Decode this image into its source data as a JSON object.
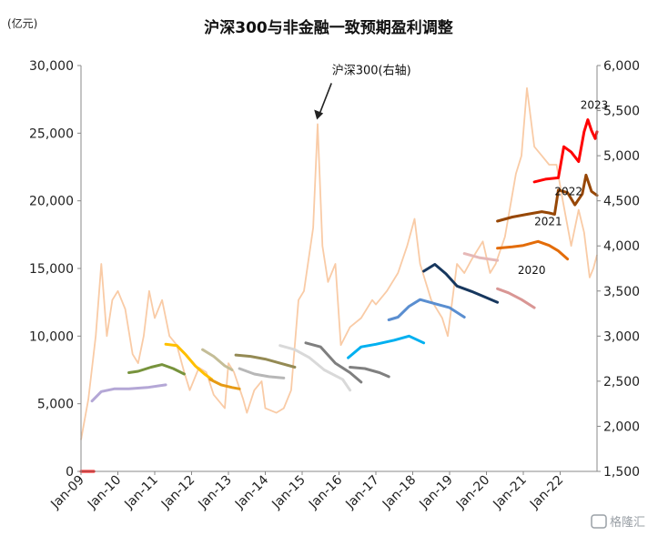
{
  "chart_data": {
    "type": "line",
    "title": "沪深300与非金融一致预期盈利调整",
    "y_unit_label": "(亿元)",
    "ylim_left": [
      0,
      30000
    ],
    "ylim_right": [
      1500,
      6000
    ],
    "y_ticks_left": [
      "0",
      "5,000",
      "10,000",
      "15,000",
      "20,000",
      "25,000",
      "30,000"
    ],
    "y_ticks_right": [
      "1,500",
      "2,000",
      "2,500",
      "3,000",
      "3,500",
      "4,000",
      "4,500",
      "5,000",
      "5,500",
      "6,000"
    ],
    "x_ticks": [
      "Jan-09",
      "Jan-10",
      "Jan-11",
      "Jan-12",
      "Jan-13",
      "Jan-14",
      "Jan-15",
      "Jan-16",
      "Jan-17",
      "Jan-18",
      "Jan-19",
      "Jan-20",
      "Jan-21",
      "Jan-22"
    ],
    "x_range": [
      2009.0,
      2023.0
    ],
    "annotation": {
      "text": "沪深300(右轴)",
      "points_to": {
        "x": 2015.4,
        "y_right": 5400
      }
    },
    "index_series": {
      "axis": "right",
      "color": "#f9cba6",
      "points": [
        [
          2009.0,
          1850
        ],
        [
          2009.2,
          2300
        ],
        [
          2009.4,
          3000
        ],
        [
          2009.55,
          3800
        ],
        [
          2009.7,
          3000
        ],
        [
          2009.85,
          3400
        ],
        [
          2010.0,
          3500
        ],
        [
          2010.2,
          3300
        ],
        [
          2010.4,
          2800
        ],
        [
          2010.55,
          2700
        ],
        [
          2010.7,
          3000
        ],
        [
          2010.85,
          3500
        ],
        [
          2011.0,
          3200
        ],
        [
          2011.2,
          3400
        ],
        [
          2011.4,
          3000
        ],
        [
          2011.6,
          2900
        ],
        [
          2011.8,
          2600
        ],
        [
          2011.95,
          2400
        ],
        [
          2012.2,
          2650
        ],
        [
          2012.4,
          2600
        ],
        [
          2012.6,
          2350
        ],
        [
          2012.9,
          2200
        ],
        [
          2013.0,
          2700
        ],
        [
          2013.15,
          2600
        ],
        [
          2013.4,
          2300
        ],
        [
          2013.5,
          2150
        ],
        [
          2013.7,
          2400
        ],
        [
          2013.9,
          2500
        ],
        [
          2014.0,
          2200
        ],
        [
          2014.3,
          2150
        ],
        [
          2014.5,
          2200
        ],
        [
          2014.7,
          2400
        ],
        [
          2014.9,
          3400
        ],
        [
          2015.05,
          3500
        ],
        [
          2015.3,
          4200
        ],
        [
          2015.42,
          5350
        ],
        [
          2015.55,
          4000
        ],
        [
          2015.7,
          3600
        ],
        [
          2015.9,
          3800
        ],
        [
          2016.05,
          2900
        ],
        [
          2016.3,
          3100
        ],
        [
          2016.6,
          3200
        ],
        [
          2016.9,
          3400
        ],
        [
          2017.0,
          3350
        ],
        [
          2017.3,
          3500
        ],
        [
          2017.6,
          3700
        ],
        [
          2017.85,
          4000
        ],
        [
          2018.05,
          4300
        ],
        [
          2018.2,
          3800
        ],
        [
          2018.5,
          3400
        ],
        [
          2018.8,
          3200
        ],
        [
          2018.95,
          3000
        ],
        [
          2019.2,
          3800
        ],
        [
          2019.4,
          3700
        ],
        [
          2019.6,
          3850
        ],
        [
          2019.9,
          4050
        ],
        [
          2020.1,
          3700
        ],
        [
          2020.25,
          3800
        ],
        [
          2020.5,
          4100
        ],
        [
          2020.8,
          4800
        ],
        [
          2020.95,
          5000
        ],
        [
          2021.1,
          5750
        ],
        [
          2021.3,
          5100
        ],
        [
          2021.5,
          5000
        ],
        [
          2021.7,
          4900
        ],
        [
          2021.9,
          4900
        ],
        [
          2022.05,
          4550
        ],
        [
          2022.3,
          4000
        ],
        [
          2022.5,
          4400
        ],
        [
          2022.65,
          4150
        ],
        [
          2022.8,
          3650
        ],
        [
          2022.9,
          3750
        ],
        [
          2023.0,
          3900
        ]
      ]
    },
    "earnings_series": [
      {
        "color": "#b4a7d6",
        "points": [
          [
            2009.3,
            5200
          ],
          [
            2009.55,
            5900
          ],
          [
            2009.9,
            6100
          ],
          [
            2010.3,
            6100
          ],
          [
            2010.8,
            6200
          ],
          [
            2011.3,
            6400
          ]
        ]
      },
      {
        "color": "#77933c",
        "points": [
          [
            2010.3,
            7300
          ],
          [
            2010.55,
            7400
          ],
          [
            2010.9,
            7700
          ],
          [
            2011.2,
            7900
          ],
          [
            2011.5,
            7600
          ],
          [
            2011.8,
            7200
          ]
        ]
      },
      {
        "color": "#ffc000",
        "points": [
          [
            2011.3,
            9400
          ],
          [
            2011.6,
            9300
          ],
          [
            2011.85,
            8600
          ],
          [
            2012.1,
            7800
          ],
          [
            2012.35,
            7200
          ],
          [
            2012.55,
            6800
          ]
        ]
      },
      {
        "color": "#e69a14",
        "points": [
          [
            2012.5,
            6800
          ],
          [
            2012.8,
            6400
          ],
          [
            2013.1,
            6200
          ],
          [
            2013.3,
            6100
          ]
        ]
      },
      {
        "color": "#c4bd97",
        "points": [
          [
            2012.3,
            9000
          ],
          [
            2012.6,
            8500
          ],
          [
            2012.9,
            7800
          ],
          [
            2013.1,
            7500
          ]
        ]
      },
      {
        "color": "#b7b7b7",
        "points": [
          [
            2013.3,
            7600
          ],
          [
            2013.7,
            7200
          ],
          [
            2014.1,
            7000
          ],
          [
            2014.5,
            6900
          ]
        ]
      },
      {
        "color": "#948a54",
        "points": [
          [
            2013.2,
            8600
          ],
          [
            2013.6,
            8500
          ],
          [
            2014.0,
            8300
          ],
          [
            2014.4,
            8000
          ],
          [
            2014.8,
            7700
          ]
        ]
      },
      {
        "color": "#d9d9d9",
        "points": [
          [
            2014.4,
            9300
          ],
          [
            2014.8,
            9000
          ],
          [
            2015.2,
            8400
          ],
          [
            2015.6,
            7500
          ],
          [
            2016.1,
            6800
          ],
          [
            2016.3,
            6000
          ]
        ]
      },
      {
        "color": "#7f7f7f",
        "points": [
          [
            2015.1,
            9500
          ],
          [
            2015.5,
            9200
          ],
          [
            2015.9,
            8000
          ],
          [
            2016.3,
            7300
          ],
          [
            2016.6,
            6600
          ]
        ]
      },
      {
        "color": "#808080",
        "points": [
          [
            2016.3,
            7700
          ],
          [
            2016.7,
            7600
          ],
          [
            2017.1,
            7300
          ],
          [
            2017.35,
            7000
          ]
        ]
      },
      {
        "color": "#00b0f0",
        "points": [
          [
            2016.25,
            8400
          ],
          [
            2016.6,
            9200
          ],
          [
            2017.0,
            9400
          ],
          [
            2017.5,
            9700
          ],
          [
            2017.9,
            10000
          ],
          [
            2018.3,
            9500
          ]
        ]
      },
      {
        "color": "#5a8ed0",
        "points": [
          [
            2017.35,
            11200
          ],
          [
            2017.6,
            11400
          ],
          [
            2017.9,
            12200
          ],
          [
            2018.2,
            12700
          ],
          [
            2018.6,
            12400
          ],
          [
            2019.0,
            12100
          ],
          [
            2019.4,
            11400
          ]
        ]
      },
      {
        "color": "#17375e",
        "points": [
          [
            2018.3,
            14800
          ],
          [
            2018.6,
            15300
          ],
          [
            2018.9,
            14600
          ],
          [
            2019.2,
            13700
          ],
          [
            2019.6,
            13300
          ],
          [
            2019.95,
            12900
          ],
          [
            2020.3,
            12500
          ]
        ]
      },
      {
        "color": "#e6b8b7",
        "points": [
          [
            2019.4,
            16100
          ],
          [
            2019.8,
            15800
          ],
          [
            2020.3,
            15600
          ]
        ]
      },
      {
        "color": "#d99694",
        "points": [
          [
            2020.3,
            13500
          ],
          [
            2020.6,
            13200
          ],
          [
            2020.95,
            12700
          ],
          [
            2021.3,
            12100
          ]
        ]
      },
      {
        "color": "#e36c09",
        "points": [
          [
            2020.3,
            16500
          ],
          [
            2020.7,
            16600
          ],
          [
            2021.0,
            16700
          ],
          [
            2021.4,
            17000
          ],
          [
            2021.7,
            16700
          ],
          [
            2021.95,
            16300
          ],
          [
            2022.2,
            15700
          ]
        ]
      },
      {
        "color": "#974706",
        "points": [
          [
            2020.3,
            18500
          ],
          [
            2020.7,
            18800
          ],
          [
            2021.1,
            19000
          ],
          [
            2021.5,
            19200
          ],
          [
            2021.7,
            19100
          ],
          [
            2021.85,
            19000
          ],
          [
            2021.95,
            20800
          ],
          [
            2022.2,
            20600
          ],
          [
            2022.4,
            19700
          ],
          [
            2022.6,
            20500
          ],
          [
            2022.7,
            21900
          ],
          [
            2022.85,
            20700
          ],
          [
            2023.0,
            20400
          ]
        ]
      },
      {
        "color": "#ff0000",
        "points": [
          [
            2009.0,
            0
          ],
          [
            2009.35,
            0
          ]
        ]
      },
      {
        "color": "#ff0000",
        "points": [
          [
            2021.3,
            21400
          ],
          [
            2021.6,
            21600
          ],
          [
            2021.95,
            21700
          ],
          [
            2022.1,
            24000
          ],
          [
            2022.3,
            23600
          ],
          [
            2022.5,
            22900
          ],
          [
            2022.65,
            25100
          ],
          [
            2022.75,
            26000
          ],
          [
            2022.85,
            25200
          ],
          [
            2022.95,
            24600
          ],
          [
            2023.0,
            25100
          ]
        ]
      }
    ],
    "series_labels": [
      {
        "text": "2023",
        "x": 2022.55,
        "y_left": 26800
      },
      {
        "text": "2022",
        "x": 2021.85,
        "y_left": 20400
      },
      {
        "text": "2021",
        "x": 2021.3,
        "y_left": 18200
      },
      {
        "text": "2020",
        "x": 2020.85,
        "y_left": 14600
      }
    ],
    "watermark": "格隆汇"
  }
}
